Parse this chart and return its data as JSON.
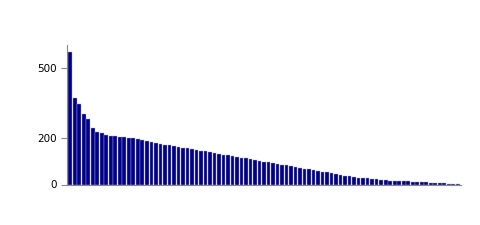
{
  "bar_color": "#00008B",
  "bar_edge_color": "#aaaacc",
  "background_color": "#ffffff",
  "ylim": [
    0,
    600
  ],
  "yticks": [
    0,
    200,
    500
  ],
  "values": [
    570,
    370,
    345,
    305,
    280,
    245,
    225,
    220,
    215,
    210,
    208,
    205,
    203,
    200,
    198,
    195,
    192,
    188,
    184,
    180,
    176,
    172,
    168,
    165,
    162,
    158,
    155,
    152,
    148,
    145,
    142,
    138,
    135,
    132,
    128,
    125,
    122,
    118,
    115,
    112,
    108,
    105,
    102,
    98,
    95,
    92,
    88,
    85,
    82,
    78,
    75,
    72,
    68,
    65,
    62,
    58,
    55,
    52,
    48,
    45,
    42,
    38,
    35,
    32,
    30,
    28,
    26,
    24,
    22,
    20,
    18,
    17,
    16,
    15,
    14,
    13,
    12,
    11,
    10,
    9,
    8,
    7,
    6,
    5,
    4,
    3,
    2
  ]
}
